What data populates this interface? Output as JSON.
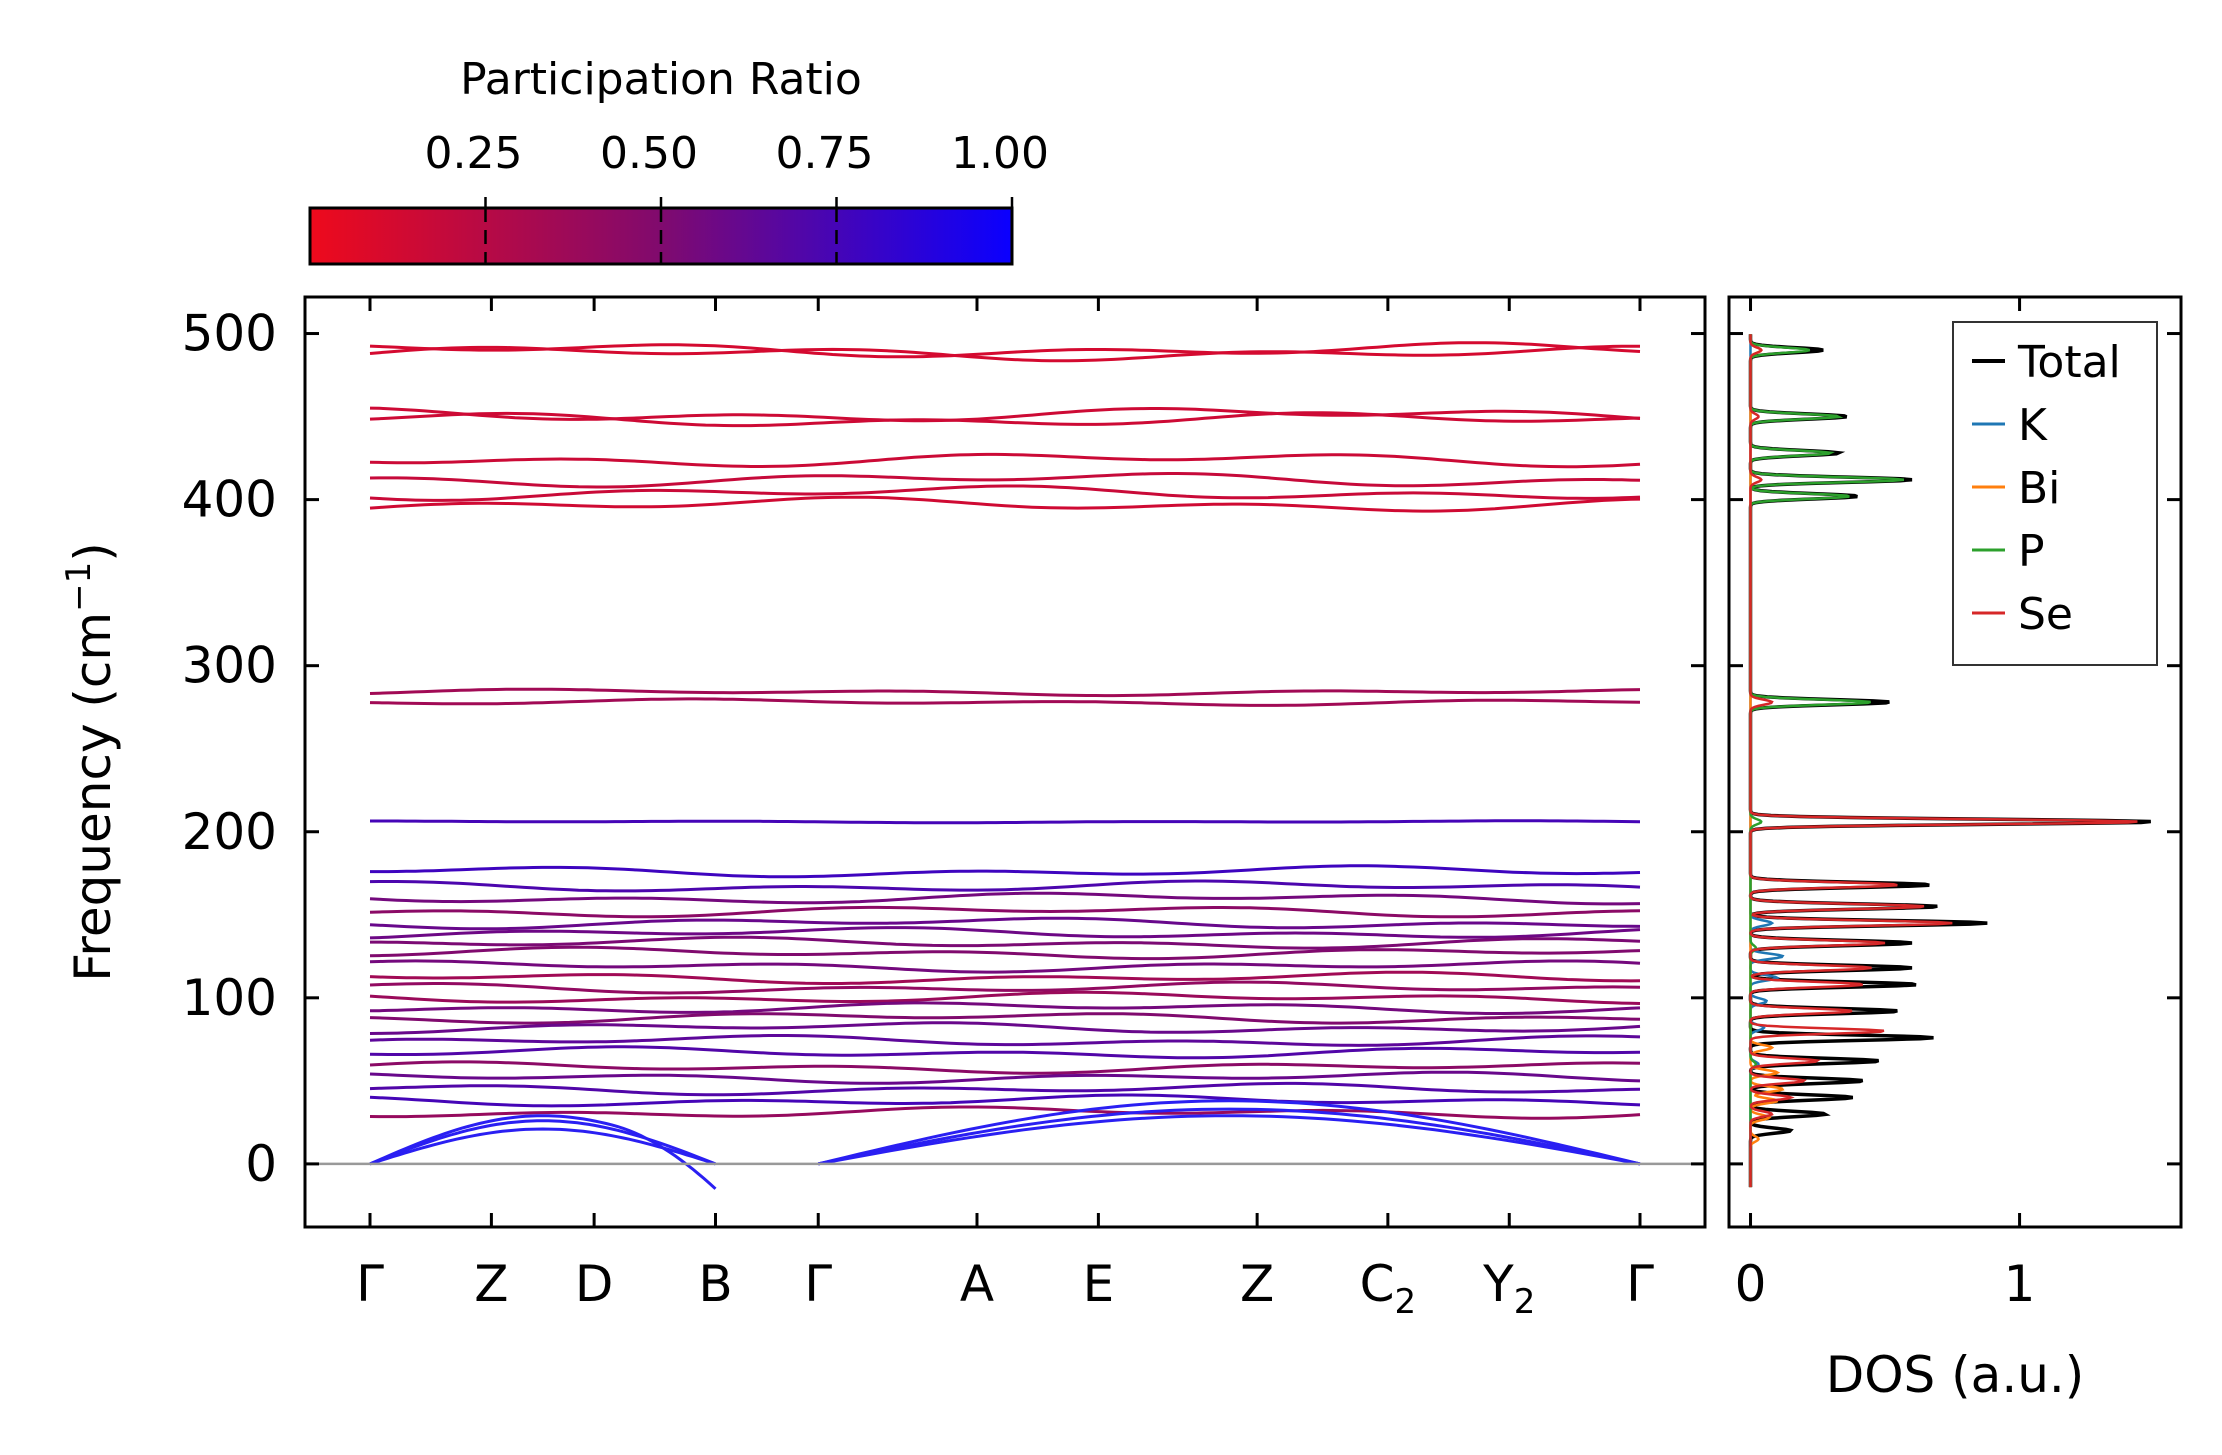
{
  "chart_data": [
    {
      "type": "line",
      "name": "phonon-band-structure",
      "ylabel": "Frequency (cm",
      "ylabel_sup": "−1",
      "ylabel_close": ")",
      "ylim": [
        -38,
        522
      ],
      "yticks": [
        0,
        100,
        200,
        300,
        400,
        500
      ],
      "kpoints": [
        {
          "label": "Γ",
          "sub": "",
          "pos": 0.0
        },
        {
          "label": "Z",
          "sub": "",
          "pos": 0.65
        },
        {
          "label": "D",
          "sub": "",
          "pos": 1.2
        },
        {
          "label": "B",
          "sub": "",
          "pos": 1.85
        },
        {
          "label": "Γ",
          "sub": "",
          "pos": 2.4
        },
        {
          "label": "A",
          "sub": "",
          "pos": 3.25
        },
        {
          "label": "E",
          "sub": "",
          "pos": 3.9
        },
        {
          "label": "Z",
          "sub": "",
          "pos": 4.75
        },
        {
          "label": "C",
          "sub": "2",
          "pos": 5.45
        },
        {
          "label": "Y",
          "sub": "2",
          "pos": 6.1
        },
        {
          "label": "Γ",
          "sub": "",
          "pos": 6.8
        }
      ],
      "zero_line": 0,
      "acoustic_color": "#2a1ff2",
      "band_levels": [
        {
          "f": 488,
          "pr": 0.12
        },
        {
          "f": 490,
          "pr": 0.12
        },
        {
          "f": 448,
          "pr": 0.15
        },
        {
          "f": 451,
          "pr": 0.15
        },
        {
          "f": 424,
          "pr": 0.16
        },
        {
          "f": 412,
          "pr": 0.18
        },
        {
          "f": 404,
          "pr": 0.17
        },
        {
          "f": 397,
          "pr": 0.14
        },
        {
          "f": 278,
          "pr": 0.35
        },
        {
          "f": 284,
          "pr": 0.35
        },
        {
          "f": 206,
          "pr": 0.75
        },
        {
          "f": 176,
          "pr": 0.78
        },
        {
          "f": 167,
          "pr": 0.72
        },
        {
          "f": 160,
          "pr": 0.55
        },
        {
          "f": 152,
          "pr": 0.45
        },
        {
          "f": 145,
          "pr": 0.6
        },
        {
          "f": 139,
          "pr": 0.58
        },
        {
          "f": 133,
          "pr": 0.52
        },
        {
          "f": 127,
          "pr": 0.5
        },
        {
          "f": 119,
          "pr": 0.55
        },
        {
          "f": 112,
          "pr": 0.35
        },
        {
          "f": 106,
          "pr": 0.42
        },
        {
          "f": 100,
          "pr": 0.38
        },
        {
          "f": 94,
          "pr": 0.55
        },
        {
          "f": 88,
          "pr": 0.5
        },
        {
          "f": 82,
          "pr": 0.6
        },
        {
          "f": 74,
          "pr": 0.65
        },
        {
          "f": 67,
          "pr": 0.7
        },
        {
          "f": 58,
          "pr": 0.45
        },
        {
          "f": 52,
          "pr": 0.6
        },
        {
          "f": 45,
          "pr": 0.7
        },
        {
          "f": 38,
          "pr": 0.75
        },
        {
          "f": 31,
          "pr": 0.4
        }
      ]
    },
    {
      "type": "line",
      "name": "phonon-dos",
      "xlabel": "DOS (a.u.)",
      "xlim": [
        -0.08,
        1.6
      ],
      "xticks": [
        0,
        1
      ],
      "ylim": [
        -38,
        522
      ],
      "legend_position": "top-right",
      "series": [
        {
          "name": "Total",
          "color": "#000000",
          "peaks": [
            [
              490,
              0.27
            ],
            [
              450,
              0.36
            ],
            [
              428,
              0.33
            ],
            [
              412,
              0.6
            ],
            [
              402,
              0.4
            ],
            [
              278,
              0.52
            ],
            [
              206,
              1.5
            ],
            [
              168,
              0.67
            ],
            [
              155,
              0.7
            ],
            [
              145,
              0.88
            ],
            [
              133,
              0.6
            ],
            [
              118,
              0.6
            ],
            [
              108,
              0.62
            ],
            [
              92,
              0.55
            ],
            [
              76,
              0.68
            ],
            [
              62,
              0.48
            ],
            [
              50,
              0.42
            ],
            [
              40,
              0.38
            ],
            [
              30,
              0.28
            ],
            [
              20,
              0.15
            ]
          ]
        },
        {
          "name": "K",
          "color": "#1f77b4",
          "peaks": [
            [
              145,
              0.08
            ],
            [
              125,
              0.12
            ],
            [
              112,
              0.1
            ],
            [
              98,
              0.06
            ],
            [
              82,
              0.05
            ],
            [
              60,
              0.03
            ]
          ]
        },
        {
          "name": "Bi",
          "color": "#ff7f0e",
          "peaks": [
            [
              490,
              0.04
            ],
            [
              70,
              0.08
            ],
            [
              55,
              0.1
            ],
            [
              45,
              0.12
            ],
            [
              38,
              0.1
            ],
            [
              28,
              0.07
            ],
            [
              15,
              0.03
            ]
          ]
        },
        {
          "name": "P",
          "color": "#2ca02c",
          "peaks": [
            [
              490,
              0.22
            ],
            [
              450,
              0.33
            ],
            [
              428,
              0.3
            ],
            [
              412,
              0.57
            ],
            [
              402,
              0.37
            ],
            [
              278,
              0.45
            ],
            [
              206,
              0.04
            ],
            [
              130,
              0.02
            ],
            [
              60,
              0.02
            ]
          ]
        },
        {
          "name": "Se",
          "color": "#d62728",
          "peaks": [
            [
              490,
              0.04
            ],
            [
              450,
              0.03
            ],
            [
              412,
              0.04
            ],
            [
              278,
              0.08
            ],
            [
              206,
              1.45
            ],
            [
              168,
              0.55
            ],
            [
              155,
              0.65
            ],
            [
              145,
              0.75
            ],
            [
              133,
              0.5
            ],
            [
              118,
              0.45
            ],
            [
              108,
              0.42
            ],
            [
              92,
              0.38
            ],
            [
              80,
              0.5
            ],
            [
              62,
              0.25
            ],
            [
              50,
              0.2
            ],
            [
              40,
              0.15
            ],
            [
              30,
              0.08
            ]
          ]
        }
      ]
    }
  ],
  "colorbar": {
    "title": "Participation Ratio",
    "tick_labels": [
      "0.25",
      "0.50",
      "0.75",
      "1.00"
    ],
    "tick_values": [
      0.25,
      0.5,
      0.75,
      1.0
    ],
    "range": [
      0.0,
      1.0
    ],
    "color_low": "#ee0a1c",
    "color_mid": "#800a6e",
    "color_high": "#0a00ff"
  }
}
